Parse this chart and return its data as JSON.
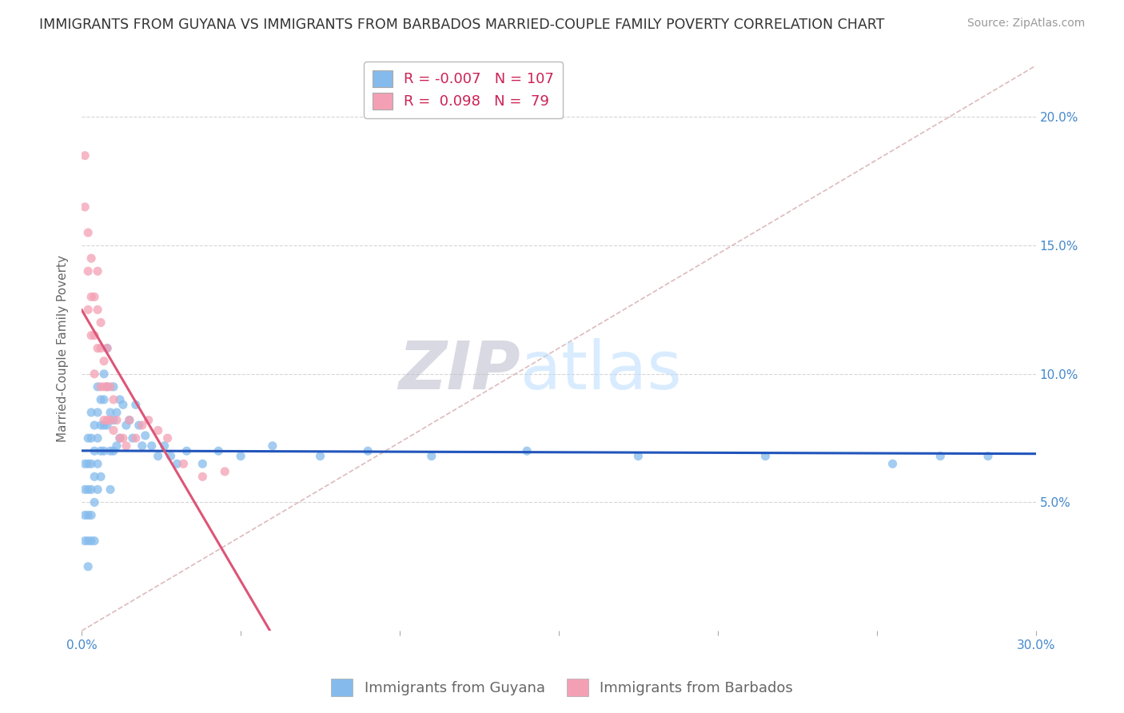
{
  "title": "IMMIGRANTS FROM GUYANA VS IMMIGRANTS FROM BARBADOS MARRIED-COUPLE FAMILY POVERTY CORRELATION CHART",
  "source": "Source: ZipAtlas.com",
  "ylabel": "Married-Couple Family Poverty",
  "watermark": "ZIPatlas",
  "xlim": [
    0.0,
    0.3
  ],
  "ylim": [
    0.0,
    0.22
  ],
  "xtick_positions": [
    0.0,
    0.05,
    0.1,
    0.15,
    0.2,
    0.25,
    0.3
  ],
  "xtick_labels": [
    "0.0%",
    "",
    "",
    "",
    "",
    "",
    "30.0%"
  ],
  "ytick_positions": [
    0.05,
    0.1,
    0.15,
    0.2
  ],
  "ytick_labels": [
    "5.0%",
    "10.0%",
    "15.0%",
    "20.0%"
  ],
  "grid_color": "#cccccc",
  "guyana_color": "#85BBEC",
  "barbados_color": "#F4A0B4",
  "guyana_trend_color": "#2255BB",
  "barbados_trend_color": "#DD5577",
  "ref_line_color": "#DDBBBB",
  "background_color": "#FFFFFF",
  "tick_color": "#4488CC",
  "legend_R_guyana": "-0.007",
  "legend_N_guyana": "107",
  "legend_R_barbados": "0.098",
  "legend_N_barbados": "79",
  "guyana_x": [
    0.001,
    0.001,
    0.001,
    0.001,
    0.002,
    0.002,
    0.002,
    0.002,
    0.002,
    0.002,
    0.003,
    0.003,
    0.003,
    0.003,
    0.003,
    0.003,
    0.004,
    0.004,
    0.004,
    0.004,
    0.004,
    0.005,
    0.005,
    0.005,
    0.005,
    0.005,
    0.006,
    0.006,
    0.006,
    0.006,
    0.007,
    0.007,
    0.007,
    0.007,
    0.008,
    0.008,
    0.008,
    0.009,
    0.009,
    0.009,
    0.01,
    0.01,
    0.01,
    0.011,
    0.011,
    0.012,
    0.012,
    0.013,
    0.014,
    0.015,
    0.016,
    0.017,
    0.018,
    0.019,
    0.02,
    0.022,
    0.024,
    0.026,
    0.028,
    0.03,
    0.033,
    0.038,
    0.043,
    0.05,
    0.06,
    0.075,
    0.09,
    0.11,
    0.14,
    0.175,
    0.215,
    0.255,
    0.27,
    0.285
  ],
  "guyana_y": [
    0.065,
    0.055,
    0.045,
    0.035,
    0.075,
    0.065,
    0.055,
    0.045,
    0.035,
    0.025,
    0.085,
    0.075,
    0.065,
    0.055,
    0.045,
    0.035,
    0.08,
    0.07,
    0.06,
    0.05,
    0.035,
    0.095,
    0.085,
    0.075,
    0.065,
    0.055,
    0.09,
    0.08,
    0.07,
    0.06,
    0.1,
    0.09,
    0.08,
    0.07,
    0.11,
    0.095,
    0.08,
    0.085,
    0.07,
    0.055,
    0.095,
    0.082,
    0.07,
    0.085,
    0.072,
    0.09,
    0.075,
    0.088,
    0.08,
    0.082,
    0.075,
    0.088,
    0.08,
    0.072,
    0.076,
    0.072,
    0.068,
    0.072,
    0.068,
    0.065,
    0.07,
    0.065,
    0.07,
    0.068,
    0.072,
    0.068,
    0.07,
    0.068,
    0.07,
    0.068,
    0.068,
    0.065,
    0.068,
    0.068
  ],
  "barbados_x": [
    0.001,
    0.001,
    0.002,
    0.002,
    0.002,
    0.003,
    0.003,
    0.003,
    0.004,
    0.004,
    0.004,
    0.005,
    0.005,
    0.005,
    0.006,
    0.006,
    0.006,
    0.007,
    0.007,
    0.007,
    0.008,
    0.008,
    0.008,
    0.009,
    0.009,
    0.01,
    0.01,
    0.011,
    0.012,
    0.013,
    0.014,
    0.015,
    0.017,
    0.019,
    0.021,
    0.024,
    0.027,
    0.032,
    0.038,
    0.045
  ],
  "barbados_y": [
    0.185,
    0.165,
    0.155,
    0.14,
    0.125,
    0.145,
    0.13,
    0.115,
    0.13,
    0.115,
    0.1,
    0.14,
    0.125,
    0.11,
    0.12,
    0.11,
    0.095,
    0.105,
    0.095,
    0.082,
    0.11,
    0.095,
    0.082,
    0.095,
    0.082,
    0.09,
    0.078,
    0.082,
    0.075,
    0.075,
    0.072,
    0.082,
    0.075,
    0.08,
    0.082,
    0.078,
    0.075,
    0.065,
    0.06,
    0.062
  ],
  "title_fontsize": 12.5,
  "source_fontsize": 10,
  "axis_label_fontsize": 11,
  "tick_fontsize": 11,
  "legend_fontsize": 13,
  "watermark_fontsize": 60,
  "watermark_color": "#BBDDFF",
  "watermark_alpha": 0.35
}
